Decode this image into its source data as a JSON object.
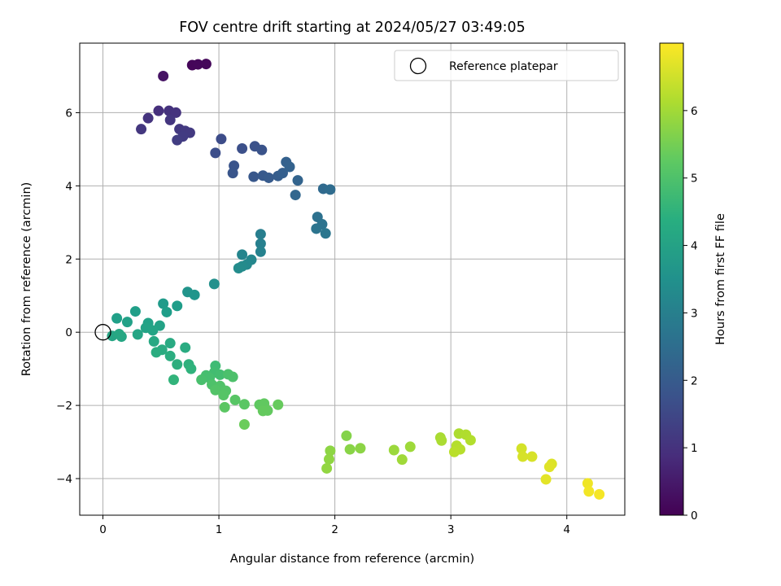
{
  "chart_data": {
    "type": "scatter",
    "title": "FOV centre drift starting at 2024/05/27 03:49:05",
    "xlabel": "Angular distance from reference (arcmin)",
    "ylabel": "Rotation from reference (arcmin)",
    "xlim": [
      -0.2,
      4.5
    ],
    "ylim": [
      -5.0,
      7.9
    ],
    "xticks": [
      0,
      1,
      2,
      3,
      4
    ],
    "yticks": [
      -4,
      -2,
      0,
      2,
      4,
      6
    ],
    "grid": true,
    "legend": {
      "label": "Reference platepar",
      "placement": "top-right",
      "marker": "open-circle"
    },
    "reference_point": {
      "x": 0,
      "y": 0
    },
    "colorbar": {
      "label": "Hours from first FF file",
      "colormap": "viridis",
      "range": [
        0,
        7.0
      ],
      "ticks": [
        0,
        1,
        2,
        3,
        4,
        5,
        6
      ]
    },
    "points": [
      {
        "x": 0.77,
        "y": 7.3,
        "h": 0.1
      },
      {
        "x": 0.82,
        "y": 7.32,
        "h": 0.12
      },
      {
        "x": 0.89,
        "y": 7.33,
        "h": 0.14
      },
      {
        "x": 0.52,
        "y": 7.0,
        "h": 0.35
      },
      {
        "x": 0.48,
        "y": 6.05,
        "h": 0.95
      },
      {
        "x": 0.57,
        "y": 6.05,
        "h": 1.0
      },
      {
        "x": 0.63,
        "y": 6.0,
        "h": 1.03
      },
      {
        "x": 0.39,
        "y": 5.85,
        "h": 1.05
      },
      {
        "x": 0.58,
        "y": 5.8,
        "h": 1.1
      },
      {
        "x": 0.33,
        "y": 5.55,
        "h": 1.12
      },
      {
        "x": 0.66,
        "y": 5.55,
        "h": 1.15
      },
      {
        "x": 0.71,
        "y": 5.5,
        "h": 1.18
      },
      {
        "x": 0.75,
        "y": 5.45,
        "h": 1.2
      },
      {
        "x": 0.69,
        "y": 5.35,
        "h": 1.22
      },
      {
        "x": 0.64,
        "y": 5.25,
        "h": 1.25
      },
      {
        "x": 1.02,
        "y": 5.28,
        "h": 1.6
      },
      {
        "x": 0.97,
        "y": 4.9,
        "h": 1.65
      },
      {
        "x": 1.2,
        "y": 5.02,
        "h": 1.7
      },
      {
        "x": 1.31,
        "y": 5.08,
        "h": 1.75
      },
      {
        "x": 1.37,
        "y": 4.98,
        "h": 1.78
      },
      {
        "x": 1.13,
        "y": 4.55,
        "h": 1.82
      },
      {
        "x": 1.12,
        "y": 4.35,
        "h": 1.85
      },
      {
        "x": 1.3,
        "y": 4.25,
        "h": 1.9
      },
      {
        "x": 1.38,
        "y": 4.28,
        "h": 1.95
      },
      {
        "x": 1.43,
        "y": 4.22,
        "h": 2.0
      },
      {
        "x": 1.51,
        "y": 4.27,
        "h": 2.05
      },
      {
        "x": 1.55,
        "y": 4.35,
        "h": 2.1
      },
      {
        "x": 1.58,
        "y": 4.65,
        "h": 2.15
      },
      {
        "x": 1.61,
        "y": 4.52,
        "h": 2.18
      },
      {
        "x": 1.68,
        "y": 4.15,
        "h": 2.22
      },
      {
        "x": 1.66,
        "y": 3.75,
        "h": 2.3
      },
      {
        "x": 1.9,
        "y": 3.92,
        "h": 2.4
      },
      {
        "x": 1.96,
        "y": 3.9,
        "h": 2.45
      },
      {
        "x": 1.85,
        "y": 3.15,
        "h": 2.6
      },
      {
        "x": 1.89,
        "y": 2.95,
        "h": 2.65
      },
      {
        "x": 1.84,
        "y": 2.83,
        "h": 2.7
      },
      {
        "x": 1.92,
        "y": 2.7,
        "h": 2.75
      },
      {
        "x": 1.36,
        "y": 2.68,
        "h": 3.0
      },
      {
        "x": 1.36,
        "y": 2.42,
        "h": 3.05
      },
      {
        "x": 1.36,
        "y": 2.2,
        "h": 3.1
      },
      {
        "x": 1.2,
        "y": 2.12,
        "h": 3.2
      },
      {
        "x": 1.28,
        "y": 1.98,
        "h": 3.25
      },
      {
        "x": 1.24,
        "y": 1.85,
        "h": 3.3
      },
      {
        "x": 1.2,
        "y": 1.8,
        "h": 3.35
      },
      {
        "x": 1.17,
        "y": 1.75,
        "h": 3.38
      },
      {
        "x": 0.96,
        "y": 1.32,
        "h": 3.5
      },
      {
        "x": 0.73,
        "y": 1.1,
        "h": 3.6
      },
      {
        "x": 0.79,
        "y": 1.02,
        "h": 3.65
      },
      {
        "x": 0.52,
        "y": 0.78,
        "h": 3.8
      },
      {
        "x": 0.64,
        "y": 0.72,
        "h": 3.85
      },
      {
        "x": 0.55,
        "y": 0.55,
        "h": 3.88
      },
      {
        "x": 0.28,
        "y": 0.57,
        "h": 3.92
      },
      {
        "x": 0.12,
        "y": 0.38,
        "h": 3.95
      },
      {
        "x": 0.21,
        "y": 0.28,
        "h": 3.98
      },
      {
        "x": 0.39,
        "y": 0.25,
        "h": 4.0
      },
      {
        "x": 0.49,
        "y": 0.18,
        "h": 4.02
      },
      {
        "x": 0.37,
        "y": 0.12,
        "h": 4.05
      },
      {
        "x": 0.43,
        "y": 0.05,
        "h": 4.08
      },
      {
        "x": 0.3,
        "y": -0.06,
        "h": 4.1
      },
      {
        "x": 0.08,
        "y": -0.1,
        "h": 4.12
      },
      {
        "x": 0.16,
        "y": -0.12,
        "h": 4.15
      },
      {
        "x": 0.14,
        "y": -0.05,
        "h": 4.18
      },
      {
        "x": 0.44,
        "y": -0.25,
        "h": 4.2
      },
      {
        "x": 0.58,
        "y": -0.3,
        "h": 4.25
      },
      {
        "x": 0.71,
        "y": -0.42,
        "h": 4.28
      },
      {
        "x": 0.51,
        "y": -0.48,
        "h": 4.3
      },
      {
        "x": 0.46,
        "y": -0.55,
        "h": 4.32
      },
      {
        "x": 0.58,
        "y": -0.65,
        "h": 4.35
      },
      {
        "x": 0.64,
        "y": -0.88,
        "h": 4.4
      },
      {
        "x": 0.74,
        "y": -0.88,
        "h": 4.45
      },
      {
        "x": 0.76,
        "y": -1.0,
        "h": 4.5
      },
      {
        "x": 0.61,
        "y": -1.3,
        "h": 4.55
      },
      {
        "x": 0.97,
        "y": -0.92,
        "h": 4.8
      },
      {
        "x": 0.96,
        "y": -1.1,
        "h": 4.85
      },
      {
        "x": 1.01,
        "y": -1.16,
        "h": 4.88
      },
      {
        "x": 0.89,
        "y": -1.18,
        "h": 4.9
      },
      {
        "x": 0.92,
        "y": -1.25,
        "h": 4.92
      },
      {
        "x": 0.85,
        "y": -1.3,
        "h": 4.95
      },
      {
        "x": 1.08,
        "y": -1.15,
        "h": 4.98
      },
      {
        "x": 1.12,
        "y": -1.22,
        "h": 5.0
      },
      {
        "x": 0.94,
        "y": -1.43,
        "h": 5.02
      },
      {
        "x": 1.01,
        "y": -1.47,
        "h": 5.05
      },
      {
        "x": 0.97,
        "y": -1.58,
        "h": 5.08
      },
      {
        "x": 1.06,
        "y": -1.6,
        "h": 5.1
      },
      {
        "x": 1.04,
        "y": -1.72,
        "h": 5.12
      },
      {
        "x": 1.14,
        "y": -1.85,
        "h": 5.15
      },
      {
        "x": 1.22,
        "y": -1.97,
        "h": 5.18
      },
      {
        "x": 1.05,
        "y": -2.05,
        "h": 5.2
      },
      {
        "x": 1.35,
        "y": -1.98,
        "h": 5.25
      },
      {
        "x": 1.39,
        "y": -1.95,
        "h": 5.28
      },
      {
        "x": 1.42,
        "y": -2.14,
        "h": 5.3
      },
      {
        "x": 1.38,
        "y": -2.15,
        "h": 5.32
      },
      {
        "x": 1.51,
        "y": -1.98,
        "h": 5.35
      },
      {
        "x": 1.22,
        "y": -2.52,
        "h": 5.4
      },
      {
        "x": 2.1,
        "y": -2.83,
        "h": 5.7
      },
      {
        "x": 2.13,
        "y": -3.2,
        "h": 5.75
      },
      {
        "x": 2.22,
        "y": -3.17,
        "h": 5.78
      },
      {
        "x": 1.96,
        "y": -3.24,
        "h": 5.8
      },
      {
        "x": 1.95,
        "y": -3.47,
        "h": 5.82
      },
      {
        "x": 1.93,
        "y": -3.72,
        "h": 5.85
      },
      {
        "x": 2.51,
        "y": -3.22,
        "h": 5.95
      },
      {
        "x": 2.65,
        "y": -3.13,
        "h": 5.98
      },
      {
        "x": 2.58,
        "y": -3.48,
        "h": 6.0
      },
      {
        "x": 2.91,
        "y": -2.88,
        "h": 6.1
      },
      {
        "x": 2.92,
        "y": -2.96,
        "h": 6.12
      },
      {
        "x": 3.07,
        "y": -2.77,
        "h": 6.15
      },
      {
        "x": 3.13,
        "y": -2.8,
        "h": 6.18
      },
      {
        "x": 3.17,
        "y": -2.95,
        "h": 6.2
      },
      {
        "x": 3.05,
        "y": -3.1,
        "h": 6.22
      },
      {
        "x": 3.08,
        "y": -3.2,
        "h": 6.25
      },
      {
        "x": 3.03,
        "y": -3.27,
        "h": 6.28
      },
      {
        "x": 3.61,
        "y": -3.18,
        "h": 6.55
      },
      {
        "x": 3.62,
        "y": -3.4,
        "h": 6.58
      },
      {
        "x": 3.7,
        "y": -3.4,
        "h": 6.6
      },
      {
        "x": 3.87,
        "y": -3.6,
        "h": 6.65
      },
      {
        "x": 3.85,
        "y": -3.68,
        "h": 6.68
      },
      {
        "x": 3.82,
        "y": -4.02,
        "h": 6.72
      },
      {
        "x": 4.18,
        "y": -4.13,
        "h": 6.85
      },
      {
        "x": 4.19,
        "y": -4.35,
        "h": 6.88
      },
      {
        "x": 4.28,
        "y": -4.43,
        "h": 6.92
      }
    ]
  }
}
